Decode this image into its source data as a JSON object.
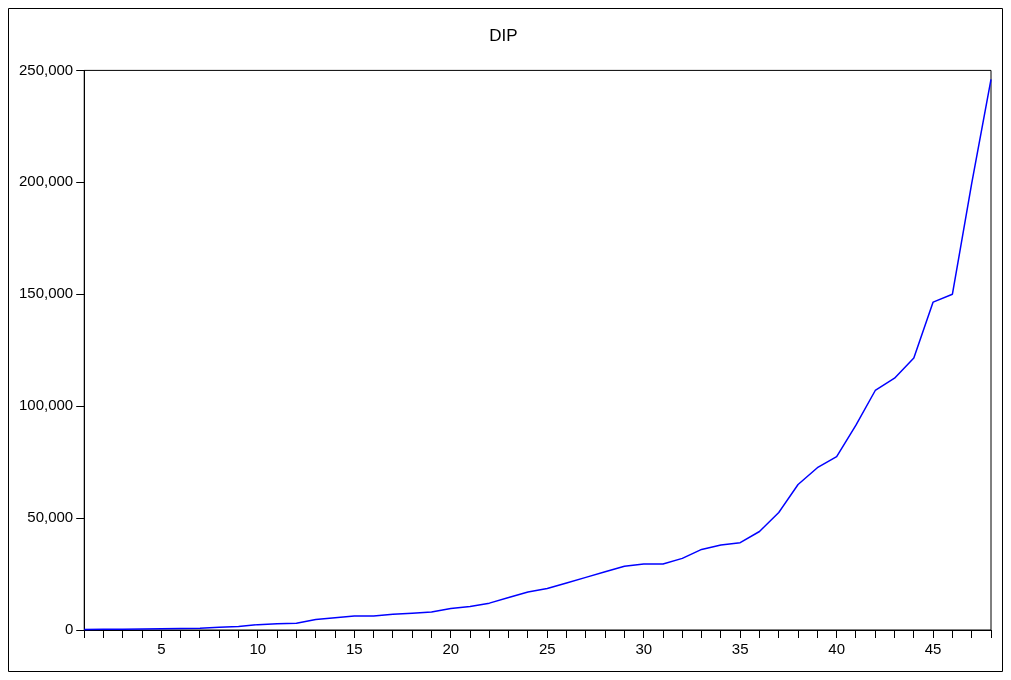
{
  "chart_data": {
    "type": "line",
    "title": "DIP",
    "x": [
      1,
      2,
      3,
      4,
      5,
      6,
      7,
      8,
      9,
      10,
      11,
      12,
      13,
      14,
      15,
      16,
      17,
      18,
      19,
      20,
      21,
      22,
      23,
      24,
      25,
      26,
      27,
      28,
      29,
      30,
      31,
      32,
      33,
      34,
      35,
      36,
      37,
      38,
      39,
      40,
      41,
      42,
      43,
      44,
      45,
      46,
      47,
      48
    ],
    "series": [
      {
        "color": "#0000ff",
        "values": [
          200,
          300,
          300,
          400,
          600,
          700,
          800,
          1200,
          1600,
          2400,
          2800,
          3000,
          4700,
          5500,
          6200,
          6300,
          7000,
          7500,
          8000,
          9600,
          10500,
          12000,
          14500,
          17000,
          18500,
          21000,
          23500,
          26000,
          28500,
          29500,
          29500,
          32000,
          36000,
          38000,
          39000,
          44000,
          52500,
          65000,
          72500,
          77500,
          91500,
          107000,
          112500,
          121500,
          146500,
          150000,
          199500,
          246000
        ]
      }
    ],
    "xlim": [
      1,
      48
    ],
    "xticks": [
      5,
      10,
      15,
      20,
      25,
      30,
      35,
      40,
      45
    ],
    "ylim": [
      0,
      250000
    ],
    "yticks": [
      0,
      {
        "value": 50000,
        "label": "50,000"
      },
      {
        "value": 100000,
        "label": "100,000"
      },
      {
        "value": 150000,
        "label": "150,000"
      },
      {
        "value": 200000,
        "label": "200,000"
      },
      {
        "value": 250000,
        "label": "250,000"
      }
    ],
    "grid": false,
    "legend": false,
    "marker": "none",
    "line_style": "solid"
  }
}
